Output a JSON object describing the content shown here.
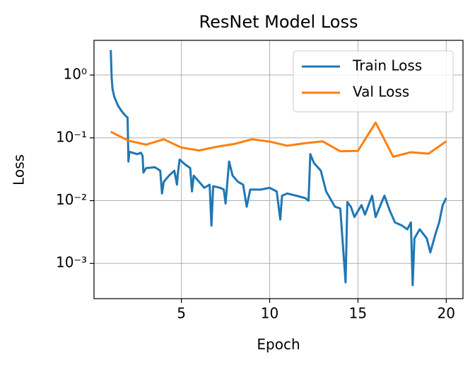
{
  "chart_data": {
    "type": "line",
    "title": "ResNet Model Loss",
    "x_label": "Epoch",
    "y_label": "Loss",
    "xlim": [
      0.05,
      20.95
    ],
    "xticks": [
      5,
      10,
      15,
      20
    ],
    "ylim": [
      0.000275,
      3.57
    ],
    "log_y": true,
    "yticks": [
      {
        "value": 0.001,
        "label": "10⁻³"
      },
      {
        "value": 0.01,
        "label": "10⁻²"
      },
      {
        "value": 0.1,
        "label": "10⁻¹"
      },
      {
        "value": 1,
        "label": "10⁰"
      }
    ],
    "grid": true,
    "legend": "upper right",
    "series": [
      {
        "name": "Train Loss",
        "color": "#1f77b4",
        "x": [
          1.0,
          1.05,
          1.1,
          1.2,
          1.4,
          1.6,
          1.8,
          1.95,
          2.0,
          2.05,
          2.5,
          2.7,
          2.8,
          2.85,
          3.0,
          3.5,
          3.8,
          3.9,
          4.0,
          4.3,
          4.6,
          4.75,
          4.8,
          4.9,
          5.2,
          5.5,
          5.6,
          5.7,
          6.0,
          6.3,
          6.6,
          6.7,
          6.8,
          7.2,
          7.4,
          7.5,
          7.7,
          7.9,
          8.2,
          8.5,
          8.7,
          8.9,
          9.5,
          10.0,
          10.4,
          10.6,
          10.7,
          11.0,
          11.5,
          12.0,
          12.2,
          12.3,
          12.5,
          12.9,
          13.2,
          13.5,
          13.7,
          14.0,
          14.3,
          14.4,
          14.6,
          14.8,
          15.2,
          15.4,
          15.8,
          16.0,
          16.5,
          16.8,
          17.1,
          17.5,
          17.8,
          18.0,
          18.1,
          18.2,
          18.5,
          18.9,
          19.1,
          19.4,
          19.6,
          19.8,
          20.0
        ],
        "values": [
          2.5,
          0.9,
          0.6,
          0.45,
          0.33,
          0.27,
          0.23,
          0.21,
          0.042,
          0.06,
          0.055,
          0.058,
          0.052,
          0.028,
          0.033,
          0.034,
          0.03,
          0.013,
          0.02,
          0.025,
          0.03,
          0.018,
          0.027,
          0.045,
          0.038,
          0.033,
          0.014,
          0.025,
          0.02,
          0.016,
          0.018,
          0.004,
          0.017,
          0.016,
          0.015,
          0.009,
          0.042,
          0.025,
          0.02,
          0.018,
          0.008,
          0.015,
          0.015,
          0.016,
          0.014,
          0.005,
          0.012,
          0.013,
          0.012,
          0.011,
          0.01,
          0.055,
          0.04,
          0.03,
          0.014,
          0.01,
          0.008,
          0.0075,
          0.0005,
          0.0095,
          0.008,
          0.0055,
          0.0085,
          0.006,
          0.012,
          0.0055,
          0.012,
          0.007,
          0.0045,
          0.004,
          0.0035,
          0.0045,
          0.00045,
          0.0025,
          0.0035,
          0.0025,
          0.0015,
          0.003,
          0.0045,
          0.0085,
          0.011
        ]
      },
      {
        "name": "Val Loss",
        "color": "#ff7f0e",
        "x": [
          1,
          2,
          3,
          4,
          5,
          6,
          7,
          8,
          9,
          10,
          11,
          12,
          13,
          14,
          15,
          16,
          17,
          18,
          19,
          20
        ],
        "values": [
          0.125,
          0.09,
          0.078,
          0.095,
          0.07,
          0.063,
          0.072,
          0.08,
          0.095,
          0.087,
          0.075,
          0.082,
          0.088,
          0.061,
          0.062,
          0.175,
          0.05,
          0.059,
          0.056,
          0.088
        ]
      }
    ]
  }
}
